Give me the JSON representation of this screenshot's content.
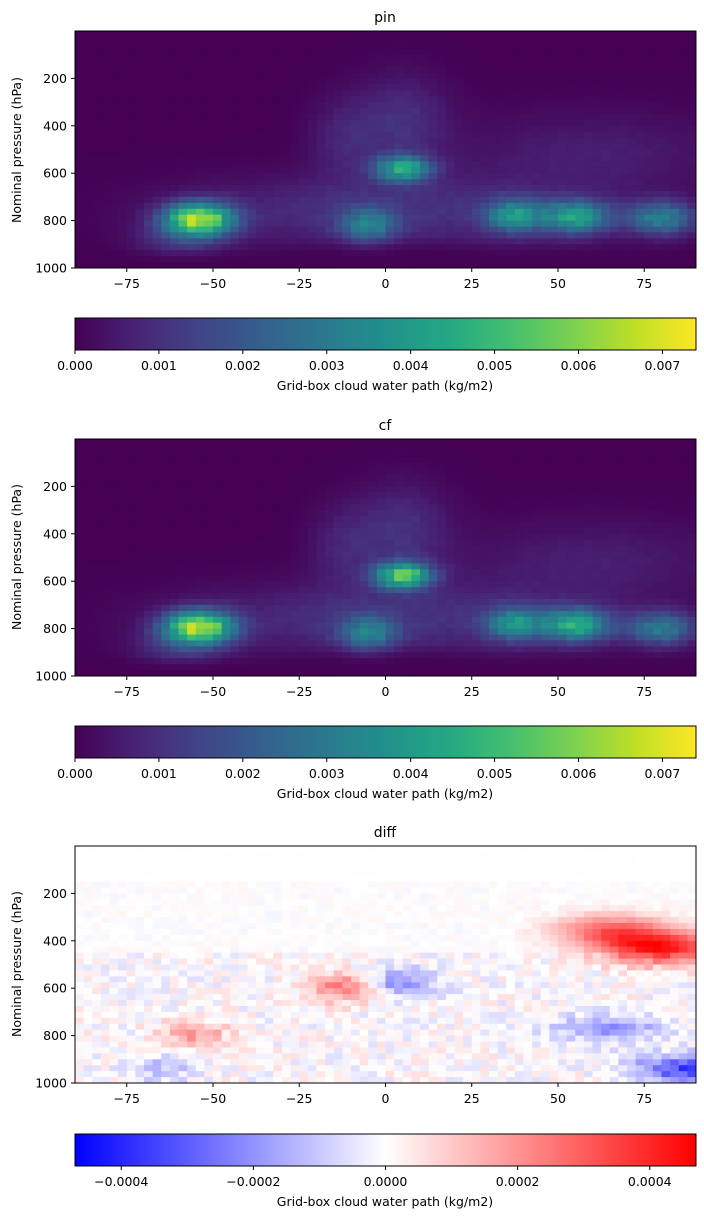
{
  "panels": [
    {
      "title": "pin",
      "colorbar_label": "Grid-box cloud water path (kg/m2)",
      "colorbar_ticks": [
        "0.000",
        "0.001",
        "0.002",
        "0.003",
        "0.004",
        "0.005",
        "0.006",
        "0.007"
      ]
    },
    {
      "title": "cf",
      "colorbar_label": "Grid-box cloud water path (kg/m2)",
      "colorbar_ticks": [
        "0.000",
        "0.001",
        "0.002",
        "0.003",
        "0.004",
        "0.005",
        "0.006",
        "0.007"
      ]
    },
    {
      "title": "diff",
      "colorbar_label": "Grid-box cloud water path (kg/m2)",
      "colorbar_ticks": [
        "−0.0004",
        "−0.0002",
        "0.0000",
        "0.0002",
        "0.0004"
      ]
    }
  ],
  "chart_data": [
    {
      "type": "heatmap",
      "title": "pin",
      "ylabel": "Nominal pressure (hPa)",
      "xlabel": "",
      "xlim": [
        -90,
        90
      ],
      "ylim": [
        1000,
        0
      ],
      "xticks": [
        -75,
        -50,
        -25,
        0,
        25,
        50,
        75
      ],
      "yticks": [
        200,
        400,
        600,
        800,
        1000
      ],
      "colormap": "viridis",
      "clim": [
        0,
        0.0074
      ],
      "colorbar_ticks": [
        0.0,
        0.001,
        0.002,
        0.003,
        0.004,
        0.005,
        0.006,
        0.007
      ],
      "features": [
        {
          "lat": -54,
          "pressure": 795,
          "value": 0.0072
        },
        {
          "lat": 5,
          "pressure": 580,
          "value": 0.0047
        },
        {
          "lat": 55,
          "pressure": 785,
          "value": 0.0046
        },
        {
          "lat": 37,
          "pressure": 780,
          "value": 0.004
        },
        {
          "lat": 80,
          "pressure": 790,
          "value": 0.0036
        },
        {
          "lat": -5,
          "pressure": 820,
          "value": 0.003
        }
      ]
    },
    {
      "type": "heatmap",
      "title": "cf",
      "ylabel": "Nominal pressure (hPa)",
      "xlabel": "",
      "xlim": [
        -90,
        90
      ],
      "ylim": [
        1000,
        0
      ],
      "xticks": [
        -75,
        -50,
        -25,
        0,
        25,
        50,
        75
      ],
      "yticks": [
        200,
        400,
        600,
        800,
        1000
      ],
      "colormap": "viridis",
      "clim": [
        0,
        0.0074
      ],
      "colorbar_ticks": [
        0.0,
        0.001,
        0.002,
        0.003,
        0.004,
        0.005,
        0.006,
        0.007
      ],
      "features": [
        {
          "lat": -54,
          "pressure": 795,
          "value": 0.0072
        },
        {
          "lat": 5,
          "pressure": 575,
          "value": 0.006
        },
        {
          "lat": 55,
          "pressure": 785,
          "value": 0.005
        },
        {
          "lat": 37,
          "pressure": 780,
          "value": 0.0038
        },
        {
          "lat": 80,
          "pressure": 800,
          "value": 0.0034
        },
        {
          "lat": -5,
          "pressure": 820,
          "value": 0.003
        }
      ]
    },
    {
      "type": "heatmap",
      "title": "diff",
      "ylabel": "Nominal pressure (hPa)",
      "xlabel": "",
      "xlim": [
        -90,
        90
      ],
      "ylim": [
        1000,
        0
      ],
      "xticks": [
        -75,
        -50,
        -25,
        0,
        25,
        50,
        75
      ],
      "yticks": [
        200,
        400,
        600,
        800,
        1000
      ],
      "colormap": "bwr",
      "clim": [
        -0.00047,
        0.00047
      ],
      "colorbar_ticks": [
        -0.0004,
        -0.0002,
        0.0,
        0.0002,
        0.0004
      ],
      "features": [
        {
          "lat": 80,
          "pressure": 430,
          "value": 0.00042
        },
        {
          "lat": 65,
          "pressure": 360,
          "value": 0.00028
        },
        {
          "lat": -12,
          "pressure": 600,
          "value": 0.00025
        },
        {
          "lat": -55,
          "pressure": 800,
          "value": 0.00018
        },
        {
          "lat": 5,
          "pressure": 580,
          "value": -0.00022
        },
        {
          "lat": 65,
          "pressure": 770,
          "value": -0.00018
        },
        {
          "lat": 88,
          "pressure": 940,
          "value": -0.00035
        },
        {
          "lat": -65,
          "pressure": 940,
          "value": -0.00012
        }
      ]
    }
  ]
}
